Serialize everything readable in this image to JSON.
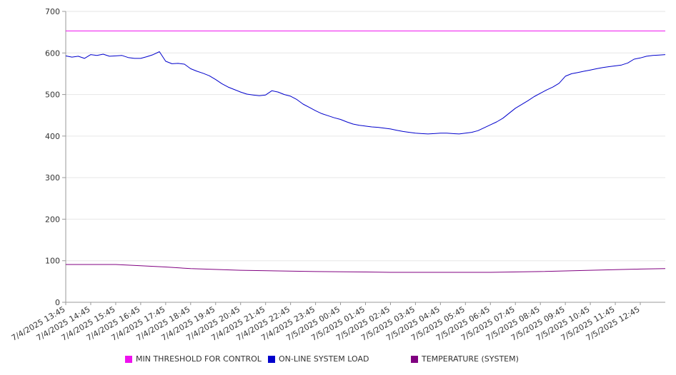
{
  "chart_data": {
    "type": "line",
    "xlabel": "",
    "ylabel": "",
    "ylim": [
      0,
      700
    ],
    "yticks": [
      0,
      100,
      200,
      300,
      400,
      500,
      600,
      700
    ],
    "x_tick_labels": [
      "7/4/2025 13:45",
      "7/4/2025 14:45",
      "7/4/2025 15:45",
      "7/4/2025 16:45",
      "7/4/2025 17:45",
      "7/4/2025 18:45",
      "7/4/2025 19:45",
      "7/4/2025 20:45",
      "7/4/2025 21:45",
      "7/4/2025 22:45",
      "7/4/2025 23:45",
      "7/5/2025 00:45",
      "7/5/2025 01:45",
      "7/5/2025 02:45",
      "7/5/2025 03:45",
      "7/5/2025 04:45",
      "7/5/2025 05:45",
      "7/5/2025 06:45",
      "7/5/2025 07:45",
      "7/5/2025 08:45",
      "7/5/2025 09:45",
      "7/5/2025 10:45",
      "7/5/2025 11:45",
      "7/5/2025 12:45"
    ],
    "x_range": [
      "7/4/2025 13:45",
      "7/5/2025 13:45"
    ],
    "grid": "horizontal",
    "legend_position": "bottom",
    "series": [
      {
        "name": "MIN THRESHOLD FOR CONTROL",
        "color": "#ee11ee",
        "times": [
          "7/4/2025 13:45",
          "7/5/2025 13:45"
        ],
        "values": [
          653,
          653
        ]
      },
      {
        "name": "ON-LINE SYSTEM LOAD",
        "color": "#0000cc",
        "times": [
          "7/4/2025 13:45",
          "7/4/2025 14:00",
          "7/4/2025 14:15",
          "7/4/2025 14:30",
          "7/4/2025 14:45",
          "7/4/2025 15:00",
          "7/4/2025 15:15",
          "7/4/2025 15:30",
          "7/4/2025 15:45",
          "7/4/2025 16:00",
          "7/4/2025 16:15",
          "7/4/2025 16:30",
          "7/4/2025 16:45",
          "7/4/2025 17:00",
          "7/4/2025 17:15",
          "7/4/2025 17:30",
          "7/4/2025 17:45",
          "7/4/2025 18:00",
          "7/4/2025 18:15",
          "7/4/2025 18:30",
          "7/4/2025 18:45",
          "7/4/2025 19:00",
          "7/4/2025 19:15",
          "7/4/2025 19:30",
          "7/4/2025 19:45",
          "7/4/2025 20:00",
          "7/4/2025 20:15",
          "7/4/2025 20:30",
          "7/4/2025 20:45",
          "7/4/2025 21:00",
          "7/4/2025 21:15",
          "7/4/2025 21:30",
          "7/4/2025 21:45",
          "7/4/2025 22:00",
          "7/4/2025 22:15",
          "7/4/2025 22:30",
          "7/4/2025 22:45",
          "7/4/2025 23:00",
          "7/4/2025 23:15",
          "7/4/2025 23:30",
          "7/4/2025 23:45",
          "7/5/2025 00:00",
          "7/5/2025 00:15",
          "7/5/2025 00:30",
          "7/5/2025 00:45",
          "7/5/2025 01:00",
          "7/5/2025 01:15",
          "7/5/2025 01:30",
          "7/5/2025 01:45",
          "7/5/2025 02:00",
          "7/5/2025 02:15",
          "7/5/2025 02:30",
          "7/5/2025 02:45",
          "7/5/2025 03:00",
          "7/5/2025 03:15",
          "7/5/2025 03:30",
          "7/5/2025 03:45",
          "7/5/2025 04:00",
          "7/5/2025 04:15",
          "7/5/2025 04:30",
          "7/5/2025 04:45",
          "7/5/2025 05:00",
          "7/5/2025 05:15",
          "7/5/2025 05:30",
          "7/5/2025 05:45",
          "7/5/2025 06:00",
          "7/5/2025 06:15",
          "7/5/2025 06:30",
          "7/5/2025 06:45",
          "7/5/2025 07:00",
          "7/5/2025 07:15",
          "7/5/2025 07:30",
          "7/5/2025 07:45",
          "7/5/2025 08:00",
          "7/5/2025 08:15",
          "7/5/2025 08:30",
          "7/5/2025 08:45",
          "7/5/2025 09:00",
          "7/5/2025 09:15",
          "7/5/2025 09:30",
          "7/5/2025 09:45",
          "7/5/2025 10:00",
          "7/5/2025 10:15",
          "7/5/2025 10:30",
          "7/5/2025 10:45",
          "7/5/2025 11:00",
          "7/5/2025 11:15",
          "7/5/2025 11:30",
          "7/5/2025 11:45",
          "7/5/2025 12:00",
          "7/5/2025 12:15",
          "7/5/2025 12:30",
          "7/5/2025 12:45",
          "7/5/2025 13:00",
          "7/5/2025 13:15",
          "7/5/2025 13:30",
          "7/5/2025 13:45"
        ],
        "values": [
          593,
          590,
          592,
          587,
          596,
          594,
          597,
          592,
          593,
          594,
          589,
          587,
          587,
          591,
          596,
          603,
          580,
          574,
          575,
          573,
          562,
          556,
          551,
          545,
          536,
          526,
          518,
          512,
          506,
          501,
          499,
          497,
          499,
          509,
          506,
          500,
          496,
          488,
          477,
          469,
          461,
          454,
          449,
          444,
          440,
          434,
          429,
          426,
          424,
          422,
          421,
          419,
          417,
          414,
          411,
          409,
          407,
          406,
          405,
          406,
          407,
          407,
          406,
          405,
          407,
          409,
          413,
          420,
          427,
          434,
          443,
          455,
          467,
          476,
          485,
          495,
          503,
          511,
          518,
          527,
          544,
          550,
          553,
          556,
          559,
          562,
          565,
          567,
          569,
          571,
          576,
          585,
          588,
          592,
          594,
          595,
          596
        ]
      },
      {
        "name": "TEMPERATURE (SYSTEM)",
        "color": "#800080",
        "times": [
          "7/4/2025 13:45",
          "7/4/2025 15:45",
          "7/4/2025 16:45",
          "7/4/2025 17:45",
          "7/4/2025 18:45",
          "7/4/2025 20:45",
          "7/4/2025 23:45",
          "7/5/2025 01:45",
          "7/5/2025 02:45",
          "7/5/2025 04:45",
          "7/5/2025 06:45",
          "7/5/2025 08:45",
          "7/5/2025 10:45",
          "7/5/2025 12:45",
          "7/5/2025 13:45"
        ],
        "values": [
          91,
          91,
          88,
          85,
          81,
          77,
          74,
          73,
          72,
          72,
          72,
          74,
          77,
          80,
          81
        ]
      }
    ]
  }
}
